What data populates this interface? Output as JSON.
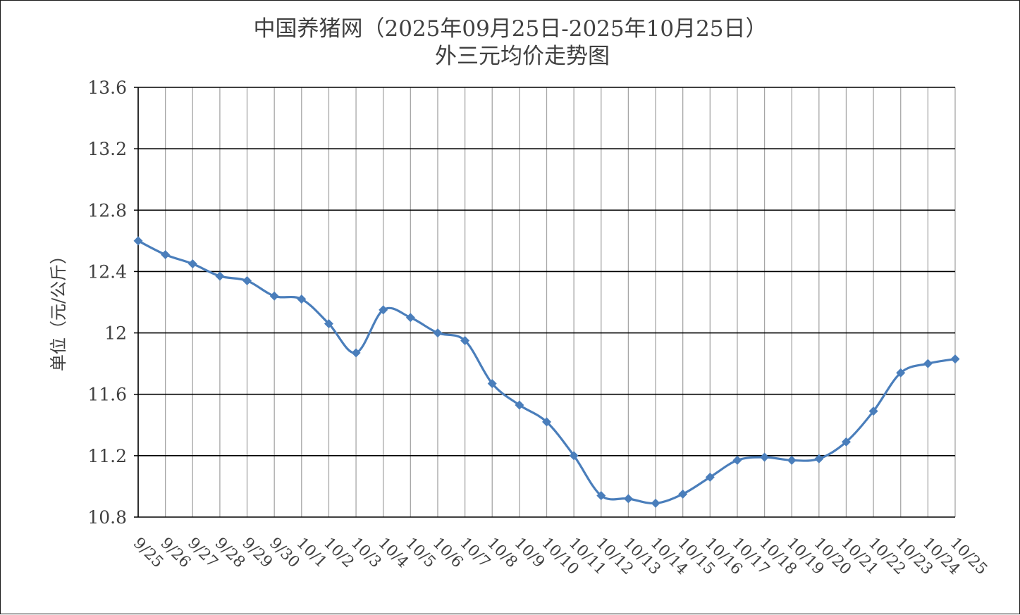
{
  "chart_data": {
    "type": "line",
    "title": "中国养猪网（2025年09月25日-2025年10月25日）",
    "subtitle": "外三元均价走势图",
    "xlabel": "",
    "ylabel": "单位（元/公斤）",
    "categories": [
      "9/25",
      "9/26",
      "9/27",
      "9/28",
      "9/29",
      "9/30",
      "10/1",
      "10/2",
      "10/3",
      "10/4",
      "10/5",
      "10/6",
      "10/7",
      "10/8",
      "10/9",
      "10/10",
      "10/11",
      "10/12",
      "10/13",
      "10/14",
      "10/15",
      "10/16",
      "10/17",
      "10/18",
      "10/19",
      "10/20",
      "10/21",
      "10/22",
      "10/23",
      "10/24",
      "10/25"
    ],
    "series": [
      {
        "name": "",
        "values": [
          12.6,
          12.51,
          12.45,
          12.37,
          12.34,
          12.24,
          12.22,
          12.06,
          11.87,
          12.15,
          12.1,
          12.0,
          11.95,
          11.67,
          11.53,
          11.42,
          11.2,
          10.94,
          10.92,
          10.89,
          10.95,
          11.06,
          11.17,
          11.19,
          11.17,
          11.18,
          11.29,
          11.49,
          11.74,
          11.8,
          11.83
        ],
        "color": "#4a7ebb"
      }
    ],
    "ylim": [
      10.8,
      13.6
    ],
    "yticks": [
      "10.8",
      "11.2",
      "11.6",
      "12",
      "12.4",
      "12.8",
      "13.2",
      "13.6"
    ],
    "grid": "on",
    "marker": "diamond",
    "legend": "none"
  }
}
